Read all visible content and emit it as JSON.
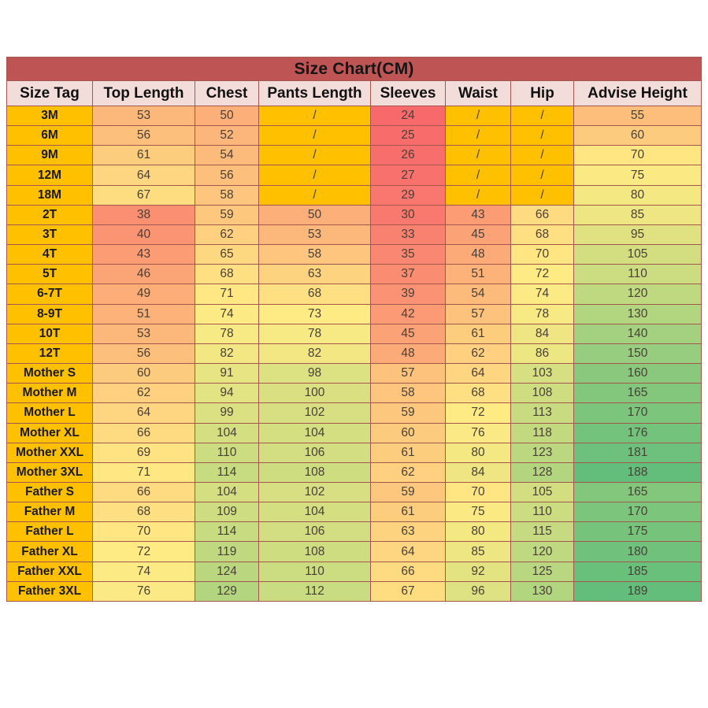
{
  "chart_data": {
    "type": "table",
    "title": "Size Chart(CM)",
    "columns": [
      "Size Tag",
      "Top Length",
      "Chest",
      "Pants Length",
      "Sleeves",
      "Waist",
      "Hip",
      "Advise Height"
    ],
    "rows": [
      {
        "tag": "3M",
        "values": [
          53,
          50,
          "/",
          24,
          "/",
          "/",
          55
        ]
      },
      {
        "tag": "6M",
        "values": [
          56,
          52,
          "/",
          25,
          "/",
          "/",
          60
        ]
      },
      {
        "tag": "9M",
        "values": [
          61,
          54,
          "/",
          26,
          "/",
          "/",
          70
        ]
      },
      {
        "tag": "12M",
        "values": [
          64,
          56,
          "/",
          27,
          "/",
          "/",
          75
        ]
      },
      {
        "tag": "18M",
        "values": [
          67,
          58,
          "/",
          29,
          "/",
          "/",
          80
        ]
      },
      {
        "tag": "2T",
        "values": [
          38,
          59,
          50,
          30,
          43,
          66,
          85
        ]
      },
      {
        "tag": "3T",
        "values": [
          40,
          62,
          53,
          33,
          45,
          68,
          95
        ]
      },
      {
        "tag": "4T",
        "values": [
          43,
          65,
          58,
          35,
          48,
          70,
          105
        ]
      },
      {
        "tag": "5T",
        "values": [
          46,
          68,
          63,
          37,
          51,
          72,
          110
        ]
      },
      {
        "tag": "6-7T",
        "values": [
          49,
          71,
          68,
          39,
          54,
          74,
          120
        ]
      },
      {
        "tag": "8-9T",
        "values": [
          51,
          74,
          73,
          42,
          57,
          78,
          130
        ]
      },
      {
        "tag": "10T",
        "values": [
          53,
          78,
          78,
          45,
          61,
          84,
          140
        ]
      },
      {
        "tag": "12T",
        "values": [
          56,
          82,
          82,
          48,
          62,
          86,
          150
        ]
      },
      {
        "tag": "Mother S",
        "values": [
          60,
          91,
          98,
          57,
          64,
          103,
          160
        ]
      },
      {
        "tag": "Mother M",
        "values": [
          62,
          94,
          100,
          58,
          68,
          108,
          165
        ]
      },
      {
        "tag": "Mother L",
        "values": [
          64,
          99,
          102,
          59,
          72,
          113,
          170
        ]
      },
      {
        "tag": "Mother XL",
        "values": [
          66,
          104,
          104,
          60,
          76,
          118,
          176
        ]
      },
      {
        "tag": "Mother XXL",
        "values": [
          69,
          110,
          106,
          61,
          80,
          123,
          181
        ]
      },
      {
        "tag": "Mother 3XL",
        "values": [
          71,
          114,
          108,
          62,
          84,
          128,
          188
        ]
      },
      {
        "tag": "Father S",
        "values": [
          66,
          104,
          102,
          59,
          70,
          105,
          165
        ]
      },
      {
        "tag": "Father M",
        "values": [
          68,
          109,
          104,
          61,
          75,
          110,
          170
        ]
      },
      {
        "tag": "Father L",
        "values": [
          70,
          114,
          106,
          63,
          80,
          115,
          175
        ]
      },
      {
        "tag": "Father XL",
        "values": [
          72,
          119,
          108,
          64,
          85,
          120,
          180
        ]
      },
      {
        "tag": "Father XXL",
        "values": [
          74,
          124,
          110,
          66,
          92,
          125,
          185
        ]
      },
      {
        "tag": "Father 3XL",
        "values": [
          76,
          129,
          112,
          67,
          96,
          130,
          189
        ]
      }
    ],
    "color_scale": {
      "min_value": 24,
      "mid_value": 72,
      "max_value": 189,
      "min_color": "#F8696B",
      "mid_color": "#FFEB84",
      "max_color": "#63BE7B"
    },
    "layout": {
      "grid": "on",
      "legend": "none"
    }
  },
  "colors": {
    "title_bg": "#BE5454",
    "header_bg": "#F2DDDB",
    "size_tag_bg": "#FFC000",
    "slash_cell_bg": "#FFC000",
    "border": "#A3574D"
  }
}
